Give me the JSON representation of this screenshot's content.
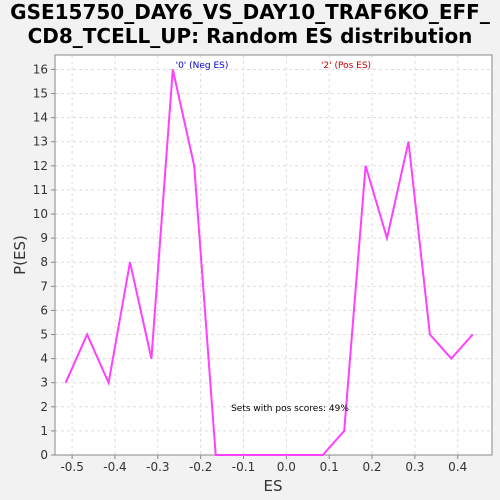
{
  "chart_data": {
    "type": "line",
    "title": [
      "GSE15750_DAY6_VS_DAY10_TRAF6KO_EFF_",
      "CD8_TCELL_UP: Random ES distribution"
    ],
    "xlabel": "ES",
    "ylabel": "P(ES)",
    "xlim": [
      -0.54,
      0.48
    ],
    "ylim": [
      0,
      16.6
    ],
    "x_ticks": [
      -0.5,
      -0.4,
      -0.3,
      -0.2,
      -0.1,
      0.0,
      0.1,
      0.2,
      0.3,
      0.4
    ],
    "x_tick_labels": [
      "-0.5",
      "-0.4",
      "-0.3",
      "-0.2",
      "-0.1",
      "0.0",
      "0.1",
      "0.2",
      "0.3",
      "0.4"
    ],
    "y_ticks": [
      0,
      1,
      2,
      3,
      4,
      5,
      6,
      7,
      8,
      9,
      10,
      11,
      12,
      13,
      14,
      15,
      16
    ],
    "grid": true,
    "series": [
      {
        "name": "P(ES)",
        "color": "#ff40ff",
        "x": [
          -0.515,
          -0.465,
          -0.415,
          -0.365,
          -0.315,
          -0.265,
          -0.215,
          -0.165,
          -0.115,
          -0.065,
          -0.015,
          0.035,
          0.085,
          0.135,
          0.185,
          0.235,
          0.285,
          0.335,
          0.385,
          0.435
        ],
        "y": [
          3,
          5,
          3,
          8,
          4,
          16,
          12,
          0,
          0,
          0,
          0,
          0,
          0,
          1,
          12,
          9,
          13,
          5,
          4,
          5
        ]
      }
    ],
    "legend": [
      {
        "label": "'0' (Neg ES)",
        "color": "#0000cc"
      },
      {
        "label": "'2' (Pos ES)",
        "color": "#cc0000"
      }
    ],
    "annotation": "Sets with pos scores: 49%"
  },
  "colors": {
    "background": "#f2f2f2",
    "plot_background": "#ffffff",
    "grid": "#dddddd",
    "axis": "#888888"
  }
}
